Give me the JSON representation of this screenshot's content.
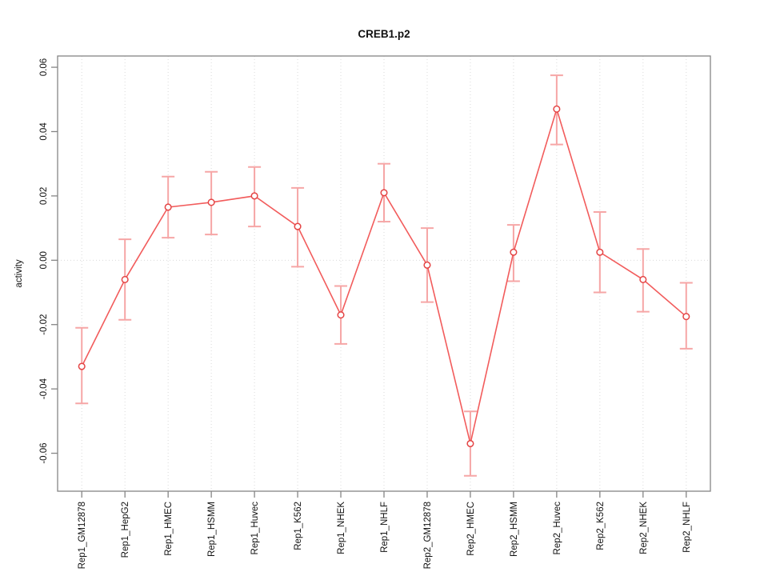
{
  "chart_data": {
    "type": "line",
    "title": "CREB1.p2",
    "xlabel": "",
    "ylabel": "activity",
    "categories": [
      "Rep1_GM12878",
      "Rep1_HepG2",
      "Rep1_HMEC",
      "Rep1_HSMM",
      "Rep1_Huvec",
      "Rep1_K562",
      "Rep1_NHEK",
      "Rep1_NHLF",
      "Rep2_GM12878",
      "Rep2_HMEC",
      "Rep2_HSMM",
      "Rep2_Huvec",
      "Rep2_K562",
      "Rep2_NHEK",
      "Rep2_NHLF"
    ],
    "series": [
      {
        "name": "activity",
        "values": [
          -0.033,
          -0.006,
          0.0165,
          0.018,
          0.02,
          0.0105,
          -0.017,
          0.021,
          -0.0015,
          -0.057,
          0.0025,
          0.047,
          0.0025,
          -0.006,
          -0.0175
        ],
        "ci_lower": [
          -0.0445,
          -0.0185,
          0.007,
          0.008,
          0.0105,
          -0.002,
          -0.026,
          0.012,
          -0.013,
          -0.067,
          -0.0065,
          0.036,
          -0.01,
          -0.016,
          -0.0275
        ],
        "ci_upper": [
          -0.021,
          0.0065,
          0.026,
          0.0275,
          0.029,
          0.0225,
          -0.008,
          0.03,
          0.01,
          -0.047,
          0.011,
          0.0575,
          0.015,
          0.0035,
          -0.007
        ]
      }
    ],
    "ylim": [
      -0.0718,
      0.0635
    ],
    "yticks": [
      -0.06,
      -0.04,
      -0.02,
      0,
      0.02,
      0.04,
      0.06
    ],
    "ytick_labels": [
      "-0.06",
      "-0.04",
      "-0.02",
      "0.00",
      "0.02",
      "0.04",
      "0.06"
    ],
    "grid": "dotted vertical line at each category and dotted horizontal line at zero",
    "legend": "none",
    "marker": "open-circle",
    "colors": {
      "line": "#f25c5c",
      "marker": "#e44545",
      "error_bar": "#f6a6a6",
      "grid": "#dadada",
      "axis": "#858585",
      "text": "#111111",
      "background": "#ffffff"
    }
  }
}
